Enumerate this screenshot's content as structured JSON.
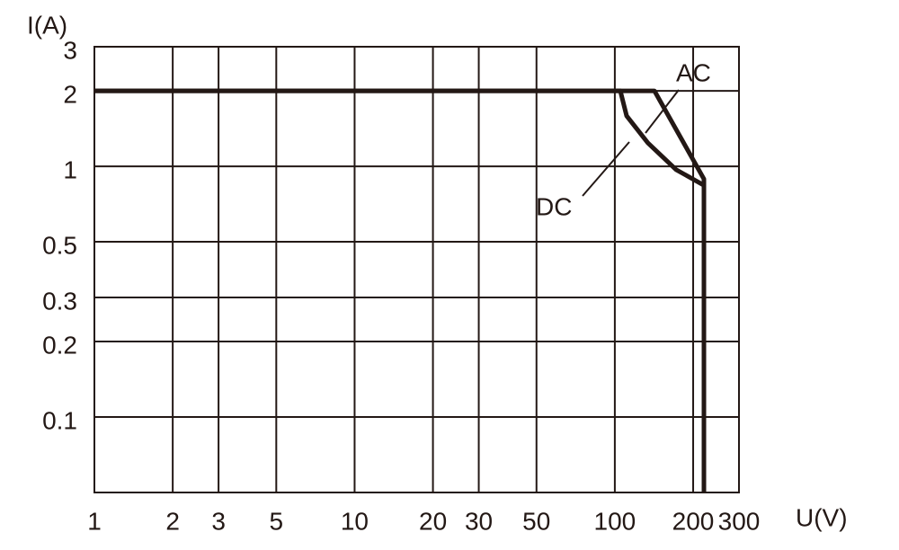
{
  "chart_data": {
    "type": "line",
    "x_label": "U(V)",
    "y_label": "I(A)",
    "xscale": "log",
    "yscale": "log",
    "xlim": [
      1,
      300
    ],
    "ylim": [
      0.05,
      3
    ],
    "xticks": [
      1,
      2,
      3,
      5,
      10,
      20,
      30,
      50,
      100,
      200,
      300
    ],
    "yticks": [
      0.1,
      0.2,
      0.3,
      0.5,
      1,
      2,
      3
    ],
    "grid": true,
    "series": [
      {
        "name": "AC",
        "color": "#231815",
        "x": [
          1,
          142,
          220,
          220
        ],
        "values": [
          2,
          2,
          0.89,
          0.05
        ]
      },
      {
        "name": "DC",
        "color": "#231815",
        "x": [
          1,
          105,
          111,
          134,
          172,
          220
        ],
        "values": [
          2,
          2,
          1.59,
          1.24,
          0.97,
          0.84
        ]
      }
    ]
  }
}
